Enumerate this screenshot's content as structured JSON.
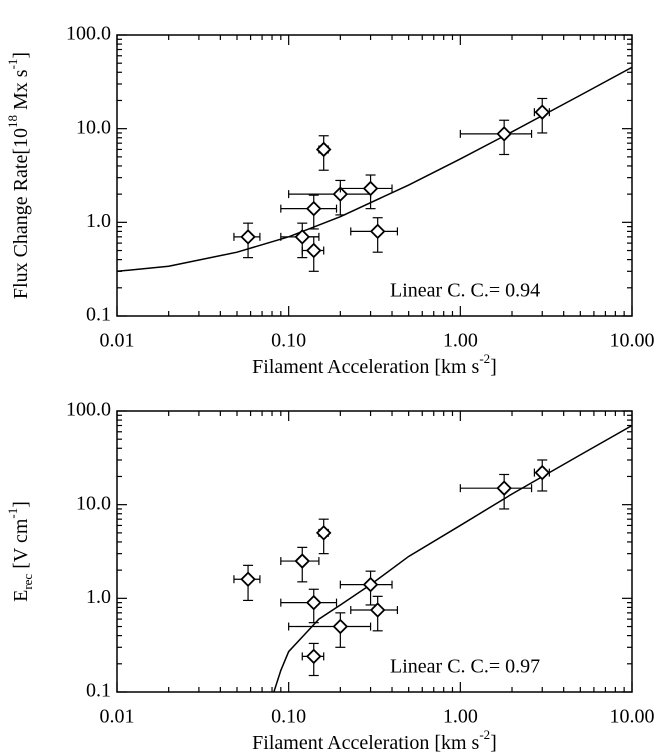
{
  "chart_data": [
    {
      "type": "scatter",
      "xscale": "log",
      "yscale": "log",
      "xlabel": [
        "Filament Acceleration [km s",
        "-2",
        "]"
      ],
      "ylabel": [
        "Flux Change Rate[10",
        "18",
        " Mx s",
        "-1",
        "]"
      ],
      "annotation": "Linear C. C.= 0.94",
      "xlim": [
        0.01,
        10
      ],
      "ylim": [
        0.1,
        100
      ],
      "xticks": [
        {
          "value": 0.01,
          "label": "0.01"
        },
        {
          "value": 0.1,
          "label": "0.10"
        },
        {
          "value": 1,
          "label": "1.00"
        },
        {
          "value": 10,
          "label": "10.00"
        }
      ],
      "yticks": [
        0.1,
        {
          "value": 1,
          "label": "1.0"
        },
        {
          "value": 10,
          "label": "10.0"
        },
        {
          "value": 100,
          "label": "100.0"
        }
      ],
      "color": "#000000",
      "points": {
        "x": [
          0.058,
          0.12,
          0.14,
          0.14,
          0.16,
          0.2,
          0.3,
          0.33,
          1.8,
          3.0
        ],
        "y": [
          0.7,
          0.7,
          0.5,
          1.4,
          6,
          2.0,
          2.3,
          0.8,
          8.8,
          15
        ],
        "xerr": [
          0.01,
          0.03,
          0.02,
          0.05,
          0.01,
          0.1,
          0.1,
          0.1,
          0.8,
          0.3
        ],
        "yerr": [
          0.28,
          0.28,
          0.2,
          0.55,
          2.4,
          0.8,
          0.9,
          0.32,
          3.5,
          6
        ]
      },
      "fit": {
        "x": [
          0.01,
          0.02,
          0.05,
          0.1,
          0.2,
          0.5,
          1,
          2,
          5,
          10
        ],
        "y": [
          0.3,
          0.34,
          0.48,
          0.7,
          1.15,
          2.5,
          4.75,
          9.25,
          22.75,
          45.25
        ]
      }
    },
    {
      "type": "scatter",
      "xscale": "log",
      "yscale": "log",
      "xlabel": [
        "Filament Acceleration [km s",
        "-2",
        "]"
      ],
      "ylabel": [
        "E",
        "rec",
        " [V cm",
        "-1",
        "]"
      ],
      "annotation": "Linear C. C.= 0.97",
      "xlim": [
        0.01,
        10
      ],
      "ylim": [
        0.1,
        100
      ],
      "xticks": [
        {
          "value": 0.01,
          "label": "0.01"
        },
        {
          "value": 0.1,
          "label": "0.10"
        },
        {
          "value": 1,
          "label": "1.00"
        },
        {
          "value": 10,
          "label": "10.00"
        }
      ],
      "yticks": [
        0.1,
        {
          "value": 1,
          "label": "1.0"
        },
        {
          "value": 10,
          "label": "10.0"
        },
        {
          "value": 100,
          "label": "100.0"
        }
      ],
      "color": "#000000",
      "points": {
        "x": [
          0.058,
          0.12,
          0.14,
          0.14,
          0.16,
          0.2,
          0.3,
          0.33,
          1.8,
          3.0
        ],
        "y": [
          1.6,
          2.5,
          0.9,
          0.24,
          5,
          0.5,
          1.4,
          0.75,
          15,
          22
        ],
        "xerr": [
          0.01,
          0.03,
          0.05,
          0.02,
          0.01,
          0.1,
          0.1,
          0.1,
          0.8,
          0.3
        ],
        "yerr": [
          0.65,
          1,
          0.35,
          0.09,
          2,
          0.2,
          0.55,
          0.3,
          6,
          8
        ]
      },
      "fit": {
        "x": [
          0.082,
          0.09,
          0.1,
          0.15,
          0.2,
          0.3,
          0.5,
          1,
          2,
          5,
          10
        ],
        "y": [
          0.1,
          0.17,
          0.27,
          0.6,
          0.85,
          1.4,
          2.8,
          6,
          13,
          34,
          70
        ]
      }
    }
  ]
}
